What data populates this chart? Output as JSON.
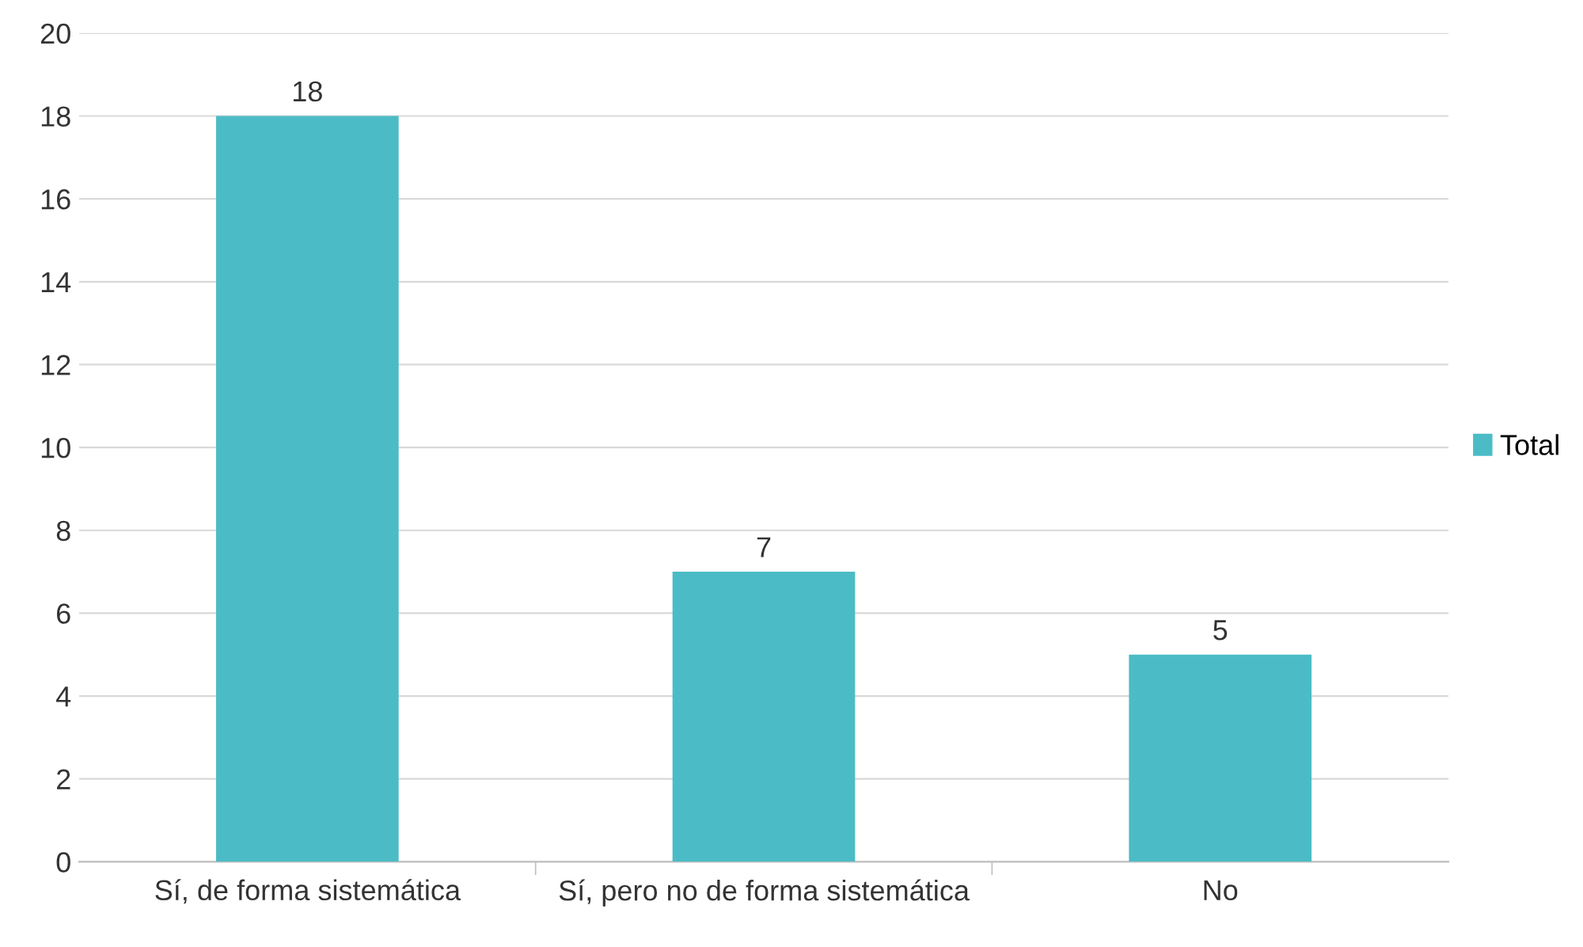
{
  "chart_data": {
    "type": "bar",
    "categories": [
      "Sí, de forma sistemática",
      "Sí, pero no de forma sistemática",
      "No"
    ],
    "series": [
      {
        "name": "Total",
        "color": "#4bbcc6",
        "values": [
          18,
          7,
          5
        ]
      }
    ],
    "ylim": [
      0,
      20
    ],
    "yticks": [
      0,
      2,
      4,
      6,
      8,
      10,
      12,
      14,
      16,
      18,
      20
    ],
    "grid": "y",
    "legend": "right",
    "data_labels": true
  }
}
